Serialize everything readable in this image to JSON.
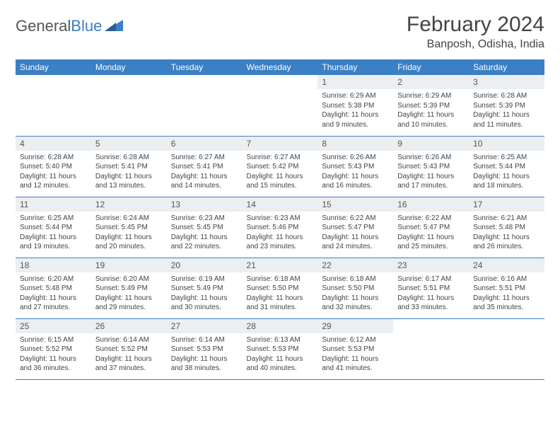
{
  "logo": {
    "text1": "General",
    "text2": "Blue"
  },
  "title": "February 2024",
  "location": "Banposh, Odisha, India",
  "colors": {
    "header_bg": "#3b7fc4",
    "header_text": "#ffffff",
    "daynum_bg": "#eceff1",
    "border": "#3b7fc4",
    "text": "#444444",
    "background": "#ffffff"
  },
  "typography": {
    "title_fontsize": 30,
    "location_fontsize": 16,
    "dayheader_fontsize": 12,
    "daynum_fontsize": 12,
    "content_fontsize": 10
  },
  "day_headers": [
    "Sunday",
    "Monday",
    "Tuesday",
    "Wednesday",
    "Thursday",
    "Friday",
    "Saturday"
  ],
  "weeks": [
    [
      null,
      null,
      null,
      null,
      {
        "n": "1",
        "sr": "Sunrise: 6:29 AM",
        "ss": "Sunset: 5:38 PM",
        "dl": "Daylight: 11 hours and 9 minutes."
      },
      {
        "n": "2",
        "sr": "Sunrise: 6:29 AM",
        "ss": "Sunset: 5:39 PM",
        "dl": "Daylight: 11 hours and 10 minutes."
      },
      {
        "n": "3",
        "sr": "Sunrise: 6:28 AM",
        "ss": "Sunset: 5:39 PM",
        "dl": "Daylight: 11 hours and 11 minutes."
      }
    ],
    [
      {
        "n": "4",
        "sr": "Sunrise: 6:28 AM",
        "ss": "Sunset: 5:40 PM",
        "dl": "Daylight: 11 hours and 12 minutes."
      },
      {
        "n": "5",
        "sr": "Sunrise: 6:28 AM",
        "ss": "Sunset: 5:41 PM",
        "dl": "Daylight: 11 hours and 13 minutes."
      },
      {
        "n": "6",
        "sr": "Sunrise: 6:27 AM",
        "ss": "Sunset: 5:41 PM",
        "dl": "Daylight: 11 hours and 14 minutes."
      },
      {
        "n": "7",
        "sr": "Sunrise: 6:27 AM",
        "ss": "Sunset: 5:42 PM",
        "dl": "Daylight: 11 hours and 15 minutes."
      },
      {
        "n": "8",
        "sr": "Sunrise: 6:26 AM",
        "ss": "Sunset: 5:43 PM",
        "dl": "Daylight: 11 hours and 16 minutes."
      },
      {
        "n": "9",
        "sr": "Sunrise: 6:26 AM",
        "ss": "Sunset: 5:43 PM",
        "dl": "Daylight: 11 hours and 17 minutes."
      },
      {
        "n": "10",
        "sr": "Sunrise: 6:25 AM",
        "ss": "Sunset: 5:44 PM",
        "dl": "Daylight: 11 hours and 18 minutes."
      }
    ],
    [
      {
        "n": "11",
        "sr": "Sunrise: 6:25 AM",
        "ss": "Sunset: 5:44 PM",
        "dl": "Daylight: 11 hours and 19 minutes."
      },
      {
        "n": "12",
        "sr": "Sunrise: 6:24 AM",
        "ss": "Sunset: 5:45 PM",
        "dl": "Daylight: 11 hours and 20 minutes."
      },
      {
        "n": "13",
        "sr": "Sunrise: 6:23 AM",
        "ss": "Sunset: 5:45 PM",
        "dl": "Daylight: 11 hours and 22 minutes."
      },
      {
        "n": "14",
        "sr": "Sunrise: 6:23 AM",
        "ss": "Sunset: 5:46 PM",
        "dl": "Daylight: 11 hours and 23 minutes."
      },
      {
        "n": "15",
        "sr": "Sunrise: 6:22 AM",
        "ss": "Sunset: 5:47 PM",
        "dl": "Daylight: 11 hours and 24 minutes."
      },
      {
        "n": "16",
        "sr": "Sunrise: 6:22 AM",
        "ss": "Sunset: 5:47 PM",
        "dl": "Daylight: 11 hours and 25 minutes."
      },
      {
        "n": "17",
        "sr": "Sunrise: 6:21 AM",
        "ss": "Sunset: 5:48 PM",
        "dl": "Daylight: 11 hours and 26 minutes."
      }
    ],
    [
      {
        "n": "18",
        "sr": "Sunrise: 6:20 AM",
        "ss": "Sunset: 5:48 PM",
        "dl": "Daylight: 11 hours and 27 minutes."
      },
      {
        "n": "19",
        "sr": "Sunrise: 6:20 AM",
        "ss": "Sunset: 5:49 PM",
        "dl": "Daylight: 11 hours and 29 minutes."
      },
      {
        "n": "20",
        "sr": "Sunrise: 6:19 AM",
        "ss": "Sunset: 5:49 PM",
        "dl": "Daylight: 11 hours and 30 minutes."
      },
      {
        "n": "21",
        "sr": "Sunrise: 6:18 AM",
        "ss": "Sunset: 5:50 PM",
        "dl": "Daylight: 11 hours and 31 minutes."
      },
      {
        "n": "22",
        "sr": "Sunrise: 6:18 AM",
        "ss": "Sunset: 5:50 PM",
        "dl": "Daylight: 11 hours and 32 minutes."
      },
      {
        "n": "23",
        "sr": "Sunrise: 6:17 AM",
        "ss": "Sunset: 5:51 PM",
        "dl": "Daylight: 11 hours and 33 minutes."
      },
      {
        "n": "24",
        "sr": "Sunrise: 6:16 AM",
        "ss": "Sunset: 5:51 PM",
        "dl": "Daylight: 11 hours and 35 minutes."
      }
    ],
    [
      {
        "n": "25",
        "sr": "Sunrise: 6:15 AM",
        "ss": "Sunset: 5:52 PM",
        "dl": "Daylight: 11 hours and 36 minutes."
      },
      {
        "n": "26",
        "sr": "Sunrise: 6:14 AM",
        "ss": "Sunset: 5:52 PM",
        "dl": "Daylight: 11 hours and 37 minutes."
      },
      {
        "n": "27",
        "sr": "Sunrise: 6:14 AM",
        "ss": "Sunset: 5:53 PM",
        "dl": "Daylight: 11 hours and 38 minutes."
      },
      {
        "n": "28",
        "sr": "Sunrise: 6:13 AM",
        "ss": "Sunset: 5:53 PM",
        "dl": "Daylight: 11 hours and 40 minutes."
      },
      {
        "n": "29",
        "sr": "Sunrise: 6:12 AM",
        "ss": "Sunset: 5:53 PM",
        "dl": "Daylight: 11 hours and 41 minutes."
      },
      null,
      null
    ]
  ]
}
